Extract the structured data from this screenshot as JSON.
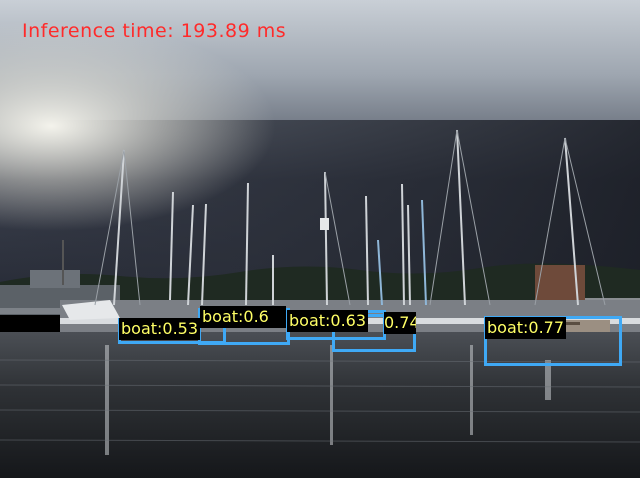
{
  "overlay": {
    "inference_text": "Inference time: 193.89 ms",
    "text_color": "#ff2a2a"
  },
  "detections": [
    {
      "class": "boat",
      "score": "0.53",
      "label": "boat:0.53"
    },
    {
      "class": "boat",
      "score": "0.6",
      "label": "boat:0.6"
    },
    {
      "class": "boat",
      "score": "0.63",
      "label": "boat:0.63"
    },
    {
      "class": "boat",
      "score": "0.74",
      "label": "0.74"
    },
    {
      "class": "boat",
      "score": "0.77",
      "label": "boat:0.77"
    }
  ],
  "colors": {
    "box": "#3fa9f5",
    "label_text": "#ffff66",
    "label_bg": "#000000"
  }
}
